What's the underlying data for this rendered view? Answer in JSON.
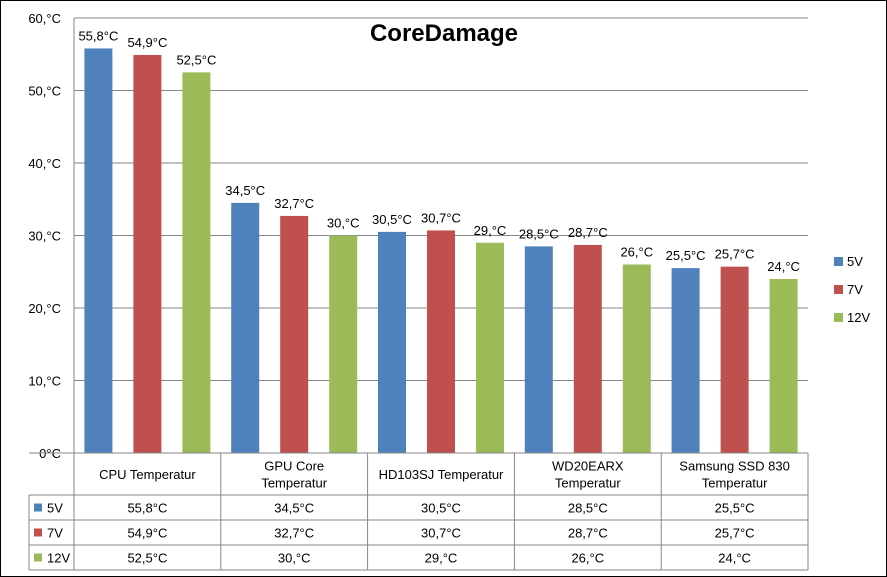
{
  "chart_data": {
    "type": "bar",
    "title": "CoreDamage",
    "xlabel": "",
    "ylabel": "",
    "ylim": [
      0,
      60
    ],
    "yticks": [
      "0°C",
      "10,°C",
      "20,°C",
      "30,°C",
      "40,°C",
      "50,°C",
      "60,°C"
    ],
    "grid": true,
    "legend_position": "right",
    "data_table": true,
    "categories": [
      [
        "CPU Temperatur"
      ],
      [
        "GPU Core",
        "Temperatur"
      ],
      [
        "HD103SJ Temperatur"
      ],
      [
        "WD20EARX",
        "Temperatur"
      ],
      [
        "Samsung SSD 830",
        "Temperatur"
      ]
    ],
    "series": [
      {
        "name": "5V",
        "color": "#4F81BD",
        "values": [
          55.8,
          34.5,
          30.5,
          28.5,
          25.5
        ],
        "labels": [
          "55,8°C",
          "34,5°C",
          "30,5°C",
          "28,5°C",
          "25,5°C"
        ]
      },
      {
        "name": "7V",
        "color": "#C0504D",
        "values": [
          54.9,
          32.7,
          30.7,
          28.7,
          25.7
        ],
        "labels": [
          "54,9°C",
          "32,7°C",
          "30,7°C",
          "28,7°C",
          "25,7°C"
        ]
      },
      {
        "name": "12V",
        "color": "#9BBB59",
        "values": [
          52.5,
          30.0,
          29.0,
          26.0,
          24.0
        ],
        "labels": [
          "52,5°C",
          "30,°C",
          "29,°C",
          "26,°C",
          "24,°C"
        ]
      }
    ]
  }
}
